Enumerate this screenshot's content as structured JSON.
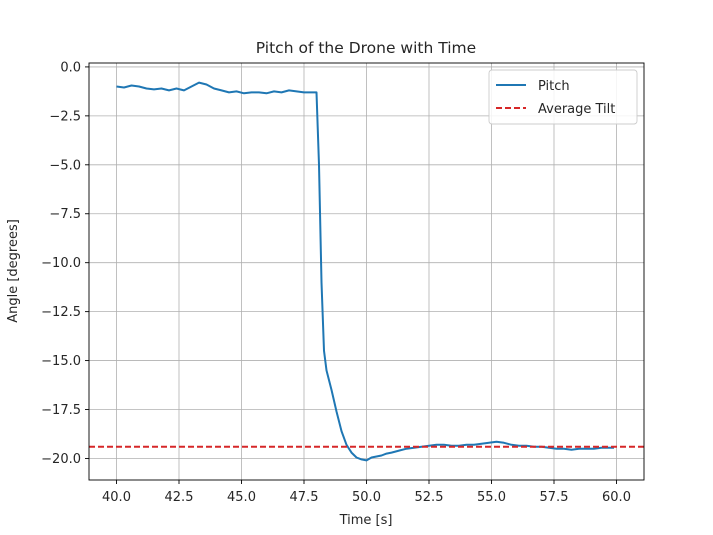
{
  "chart_data": {
    "type": "line",
    "title": "Pitch of the Drone with Time",
    "xlabel": "Time [s]",
    "ylabel": "Angle [degrees]",
    "xlim": [
      38.9,
      61.1
    ],
    "ylim": [
      -21.1,
      0.2
    ],
    "xticks": [
      40.0,
      42.5,
      45.0,
      47.5,
      50.0,
      52.5,
      55.0,
      57.5,
      60.0
    ],
    "xtick_labels": [
      "40.0",
      "42.5",
      "45.0",
      "47.5",
      "50.0",
      "52.5",
      "55.0",
      "57.5",
      "60.0"
    ],
    "yticks": [
      0.0,
      -2.5,
      -5.0,
      -7.5,
      -10.0,
      -12.5,
      -15.0,
      -17.5,
      -20.0
    ],
    "ytick_labels": [
      "0.0",
      "−2.5",
      "−5.0",
      "−7.5",
      "−10.0",
      "−12.5",
      "−15.0",
      "−17.5",
      "−20.0"
    ],
    "grid": true,
    "legend_position": "top-right",
    "series": [
      {
        "name": "Pitch",
        "style": "solid",
        "color": "#1f77b4",
        "x": [
          40.0,
          40.3,
          40.6,
          40.9,
          41.2,
          41.5,
          41.8,
          42.1,
          42.4,
          42.7,
          43.0,
          43.3,
          43.6,
          43.9,
          44.2,
          44.5,
          44.8,
          45.1,
          45.4,
          45.7,
          46.0,
          46.3,
          46.6,
          46.9,
          47.2,
          47.5,
          47.8,
          48.0,
          48.1,
          48.2,
          48.3,
          48.4,
          48.6,
          48.8,
          49.0,
          49.2,
          49.4,
          49.6,
          49.8,
          50.0,
          50.2,
          50.4,
          50.6,
          50.8,
          51.0,
          51.3,
          51.6,
          51.9,
          52.2,
          52.5,
          52.8,
          53.1,
          53.4,
          53.7,
          54.0,
          54.3,
          54.6,
          54.9,
          55.2,
          55.5,
          55.8,
          56.1,
          56.4,
          56.7,
          57.0,
          57.3,
          57.6,
          57.9,
          58.2,
          58.5,
          58.8,
          59.1,
          59.4,
          59.7,
          59.9
        ],
        "y": [
          -1.0,
          -1.05,
          -0.95,
          -1.0,
          -1.1,
          -1.15,
          -1.1,
          -1.2,
          -1.1,
          -1.2,
          -1.0,
          -0.8,
          -0.9,
          -1.1,
          -1.2,
          -1.3,
          -1.25,
          -1.35,
          -1.3,
          -1.3,
          -1.35,
          -1.25,
          -1.3,
          -1.2,
          -1.25,
          -1.3,
          -1.3,
          -1.3,
          -5.0,
          -11.0,
          -14.5,
          -15.5,
          -16.5,
          -17.6,
          -18.6,
          -19.3,
          -19.7,
          -19.95,
          -20.05,
          -20.1,
          -19.95,
          -19.9,
          -19.85,
          -19.75,
          -19.7,
          -19.6,
          -19.5,
          -19.45,
          -19.4,
          -19.35,
          -19.3,
          -19.3,
          -19.35,
          -19.35,
          -19.3,
          -19.3,
          -19.25,
          -19.2,
          -19.15,
          -19.2,
          -19.3,
          -19.35,
          -19.35,
          -19.4,
          -19.4,
          -19.45,
          -19.5,
          -19.5,
          -19.55,
          -19.5,
          -19.5,
          -19.5,
          -19.45,
          -19.45,
          -19.45
        ]
      },
      {
        "name": "Average Tilt",
        "style": "dashed",
        "color": "#d62728",
        "constant_y": -19.4
      }
    ]
  }
}
